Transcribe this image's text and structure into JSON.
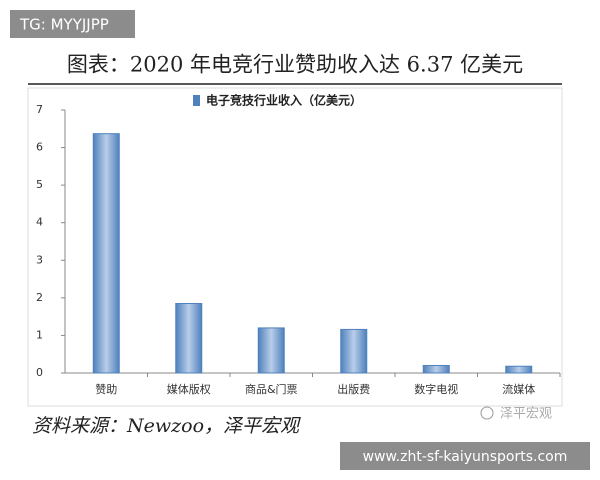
{
  "badge": "TG: MYYJJPP",
  "source": "资料来源：Newzoo，泽平宏观",
  "watermark": "泽平宏观",
  "banner": "www.zht-sf-kaiyunsports.com",
  "chart_data": {
    "type": "bar",
    "title": "图表：2020 年电竞行业赞助收入达 6.37 亿美元",
    "categories": [
      "赞助",
      "媒体版权",
      "商品&门票",
      "出版费",
      "数字电视",
      "流媒体"
    ],
    "series": [
      {
        "name": "电子竞技行业收入（亿美元）",
        "color": "#4f81bd",
        "values": [
          6.37,
          1.85,
          1.2,
          1.16,
          0.2,
          0.18
        ]
      }
    ],
    "ylim": [
      0,
      7
    ],
    "yticks": [
      0,
      1,
      2,
      3,
      4,
      5,
      6,
      7
    ],
    "grid": false,
    "legend": "top"
  }
}
